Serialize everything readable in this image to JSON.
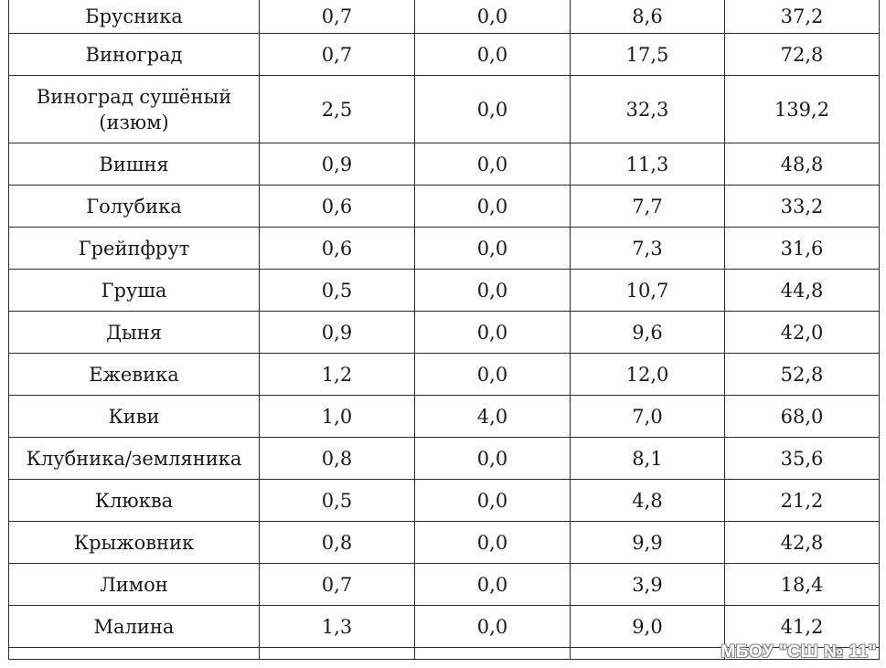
{
  "rows": [
    {
      "name": "Брусника",
      "c2": "0,7",
      "c3": "0,0",
      "c4": "8,6",
      "c5": "37,2"
    },
    {
      "name": "Виноград",
      "c2": "0,7",
      "c3": "0,0",
      "c4": "17,5",
      "c5": "72,8"
    },
    {
      "name": "Виноград  сушёный (изюм)",
      "c2": "2,5",
      "c3": "0,0",
      "c4": "32,3",
      "c5": "139,2"
    },
    {
      "name": "Вишня",
      "c2": "0,9",
      "c3": "0,0",
      "c4": "11,3",
      "c5": "48,8"
    },
    {
      "name": "Голубика",
      "c2": "0,6",
      "c3": "0,0",
      "c4": "7,7",
      "c5": "33,2"
    },
    {
      "name": "Грейпфрут",
      "c2": "0,6",
      "c3": "0,0",
      "c4": "7,3",
      "c5": "31,6"
    },
    {
      "name": "Груша",
      "c2": "0,5",
      "c3": "0,0",
      "c4": "10,7",
      "c5": "44,8"
    },
    {
      "name": "Дыня",
      "c2": "0,9",
      "c3": "0,0",
      "c4": "9,6",
      "c5": "42,0"
    },
    {
      "name": "Ежевика",
      "c2": "1,2",
      "c3": "0,0",
      "c4": "12,0",
      "c5": "52,8"
    },
    {
      "name": "Киви",
      "c2": "1,0",
      "c3": "4,0",
      "c4": "7,0",
      "c5": "68,0"
    },
    {
      "name": "Клубника/земляника",
      "c2": "0,8",
      "c3": "0,0",
      "c4": "8,1",
      "c5": "35,6"
    },
    {
      "name": "Клюква",
      "c2": "0,5",
      "c3": "0,0",
      "c4": "4,8",
      "c5": "21,2"
    },
    {
      "name": "Крыжовник",
      "c2": "0,8",
      "c3": "0,0",
      "c4": "9,9",
      "c5": "42,8"
    },
    {
      "name": "Лимон",
      "c2": "0,7",
      "c3": "0,0",
      "c4": "3,9",
      "c5": "18,4"
    },
    {
      "name": "Малина",
      "c2": "1,3",
      "c3": "0,0",
      "c4": "9,0",
      "c5": "41,2"
    }
  ],
  "watermark": "МБОУ \"СШ № 11\""
}
